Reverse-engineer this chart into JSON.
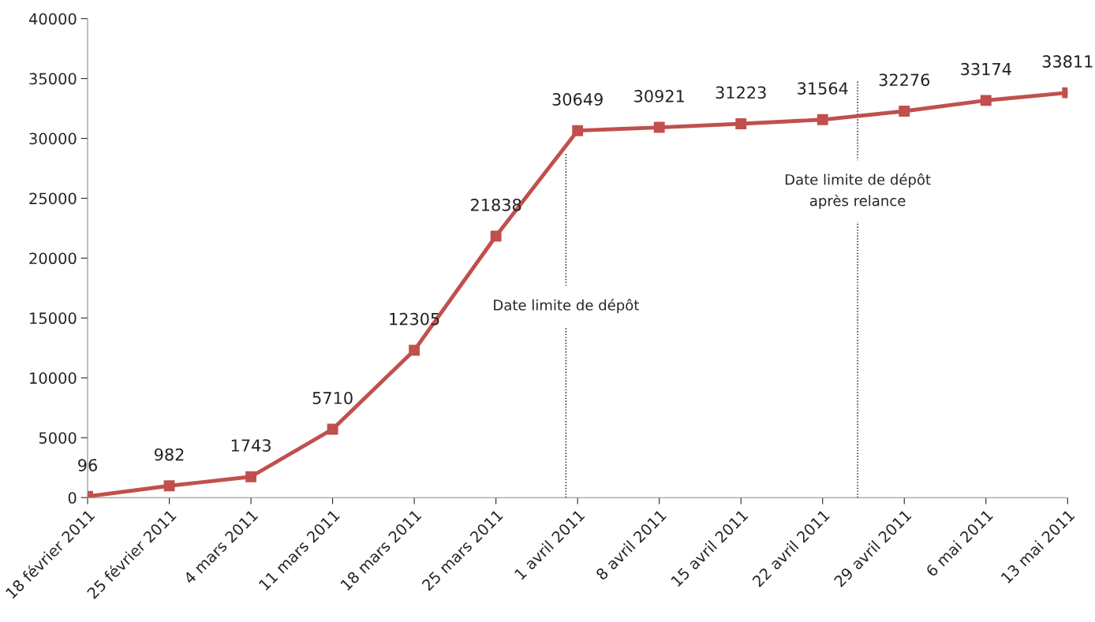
{
  "chart_data": {
    "type": "line",
    "x": [
      "2011-02-18",
      "2011-02-25",
      "2011-03-04",
      "2011-03-11",
      "2011-03-18",
      "2011-03-25",
      "2011-04-01",
      "2011-04-08",
      "2011-04-15",
      "2011-04-22",
      "2011-04-29",
      "2011-05-06",
      "2011-05-13"
    ],
    "series": [
      {
        "color": "#c0504d",
        "values": [
          96,
          982,
          1743,
          5710,
          12305,
          21838,
          30649,
          30921,
          31223,
          31564,
          32276,
          33174,
          33811
        ]
      }
    ],
    "xlim": [
      "2011-02-18",
      "2011-05-13"
    ],
    "xticks": [
      {
        "value": "2011-02-18",
        "label": "18 février 2011"
      },
      {
        "value": "2011-02-25",
        "label": "25 février 2011"
      },
      {
        "value": "2011-03-04",
        "label": "4 mars 2011"
      },
      {
        "value": "2011-03-11",
        "label": "11 mars 2011"
      },
      {
        "value": "2011-03-18",
        "label": "18 mars 2011"
      },
      {
        "value": "2011-03-25",
        "label": "25 mars 2011"
      },
      {
        "value": "2011-04-01",
        "label": "1 avril 2011"
      },
      {
        "value": "2011-04-08",
        "label": "8 avril 2011"
      },
      {
        "value": "2011-04-15",
        "label": "15 avril 2011"
      },
      {
        "value": "2011-04-22",
        "label": "22 avril 2011"
      },
      {
        "value": "2011-04-29",
        "label": "29 avril 2011"
      },
      {
        "value": "2011-05-06",
        "label": "6 mai 2011"
      },
      {
        "value": "2011-05-13",
        "label": "13 mai 2011"
      }
    ],
    "ylim": [
      0,
      40000
    ],
    "yticks": [
      0,
      5000,
      10000,
      15000,
      20000,
      25000,
      30000,
      35000,
      40000
    ],
    "ref_lines": [
      {
        "axis": "x",
        "value": "2011-03-31",
        "label": "Date limite de dépôt",
        "color": "#000000",
        "line_style": "dotted"
      },
      {
        "axis": "x",
        "value": "2011-04-25",
        "label": "Date limite de dépôt\naprès relance",
        "color": "#000000",
        "line_style": "dotted"
      }
    ],
    "data_labels": true,
    "marker": "square",
    "line_style": "solid",
    "grid": false,
    "legend": false
  }
}
